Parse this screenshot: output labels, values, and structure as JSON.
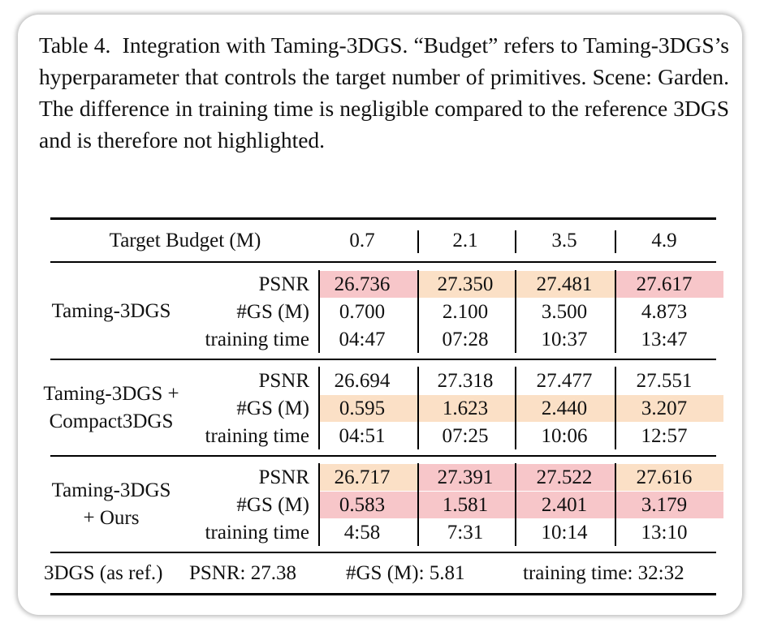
{
  "caption": {
    "label": "Table 4.",
    "text": "Integration with Taming-3DGS. “Budget” refers to Taming-3DGS’s hyperparameter that controls the target number of primitives. Scene: Garden. The difference in training time is negligible compared to the reference 3DGS and is therefore not highlighted."
  },
  "table": {
    "header": {
      "label": "Target Budget (M)",
      "budgets": [
        "0.7",
        "2.1",
        "3.5",
        "4.9"
      ]
    },
    "metric_labels": [
      "PSNR",
      "#GS (M)",
      "training time"
    ],
    "groups": [
      {
        "method_lines": [
          "Taming-3DGS"
        ],
        "rows": [
          {
            "metric": "PSNR",
            "values": [
              "26.736",
              "27.350",
              "27.481",
              "27.617"
            ],
            "highlights": [
              "pink",
              "peach",
              "peach",
              "pink"
            ]
          },
          {
            "metric": "#GS (M)",
            "values": [
              "0.700",
              "2.100",
              "3.500",
              "4.873"
            ],
            "highlights": [
              "",
              "",
              "",
              ""
            ]
          },
          {
            "metric": "training time",
            "values": [
              "04:47",
              "07:28",
              "10:37",
              "13:47"
            ],
            "highlights": [
              "",
              "",
              "",
              ""
            ]
          }
        ]
      },
      {
        "method_lines": [
          "Taming-3DGS +",
          "Compact3DGS"
        ],
        "rows": [
          {
            "metric": "PSNR",
            "values": [
              "26.694",
              "27.318",
              "27.477",
              "27.551"
            ],
            "highlights": [
              "",
              "",
              "",
              ""
            ]
          },
          {
            "metric": "#GS (M)",
            "values": [
              "0.595",
              "1.623",
              "2.440",
              "3.207"
            ],
            "highlights": [
              "peach",
              "peach",
              "peach",
              "peach"
            ]
          },
          {
            "metric": "training time",
            "values": [
              "04:51",
              "07:25",
              "10:06",
              "12:57"
            ],
            "highlights": [
              "",
              "",
              "",
              ""
            ]
          }
        ]
      },
      {
        "method_lines": [
          "Taming-3DGS",
          "+ Ours"
        ],
        "rows": [
          {
            "metric": "PSNR",
            "values": [
              "26.717",
              "27.391",
              "27.522",
              "27.616"
            ],
            "highlights": [
              "peach",
              "pink",
              "pink",
              "peach"
            ]
          },
          {
            "metric": "#GS (M)",
            "values": [
              "0.583",
              "1.581",
              "2.401",
              "3.179"
            ],
            "highlights": [
              "pink",
              "pink",
              "pink",
              "pink"
            ]
          },
          {
            "metric": "training time",
            "values": [
              "4:58",
              "7:31",
              "10:14",
              "13:10"
            ],
            "highlights": [
              "",
              "",
              "",
              ""
            ]
          }
        ]
      }
    ],
    "reference": {
      "label": "3DGS (as ref.)",
      "psnr": "PSNR: 27.38",
      "gs": "#GS (M): 5.81",
      "time": "training time: 32:32"
    }
  },
  "colors": {
    "best_highlight": "#f7c6c9",
    "second_highlight": "#fbe0c6"
  }
}
